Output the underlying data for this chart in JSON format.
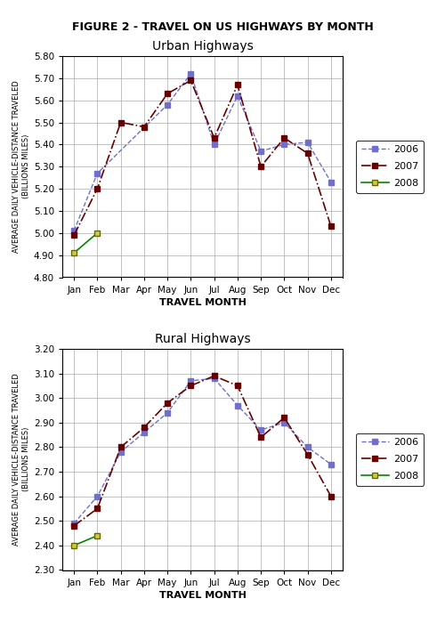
{
  "title": "FIGURE 2 - TRAVEL ON US HIGHWAYS BY MONTH",
  "months": [
    "Jan",
    "Feb",
    "Mar",
    "Apr",
    "May",
    "Jun",
    "Jul",
    "Aug",
    "Sep",
    "Oct",
    "Nov",
    "Dec"
  ],
  "urban": {
    "subtitle": "Urban Highways",
    "ylabel": "AVERAGE DAILY VEHICLE-DISTANCE TRAVELED\n(BILLIONS MILES)",
    "xlabel": "TRAVEL MONTH",
    "ylim": [
      4.8,
      5.8
    ],
    "yticks": [
      4.8,
      4.9,
      5.0,
      5.1,
      5.2,
      5.3,
      5.4,
      5.5,
      5.6,
      5.7,
      5.8
    ],
    "series_2006": [
      5.01,
      5.27,
      null,
      null,
      5.58,
      5.72,
      5.4,
      5.62,
      5.37,
      5.4,
      5.41,
      5.23
    ],
    "series_2007": [
      4.99,
      5.2,
      5.5,
      5.48,
      5.63,
      5.69,
      5.43,
      5.67,
      5.3,
      5.43,
      5.36,
      5.03
    ],
    "series_2008": [
      4.91,
      5.0,
      null,
      null,
      null,
      null,
      null,
      null,
      null,
      null,
      null,
      null
    ]
  },
  "rural": {
    "subtitle": "Rural Highways",
    "ylabel": "AVERAGE DAILY VEHICLE-DISTANCE TRAVELED\n(BILLIONS MILES)",
    "xlabel": "TRAVEL MONTH",
    "ylim": [
      2.3,
      3.2
    ],
    "yticks": [
      2.3,
      2.4,
      2.5,
      2.6,
      2.7,
      2.8,
      2.9,
      3.0,
      3.1,
      3.2
    ],
    "series_2006": [
      2.49,
      2.6,
      2.78,
      2.86,
      2.94,
      3.07,
      3.08,
      2.97,
      2.87,
      2.9,
      2.8,
      2.73
    ],
    "series_2007": [
      2.48,
      2.55,
      2.8,
      2.88,
      2.98,
      3.05,
      3.09,
      3.05,
      2.84,
      2.92,
      2.77,
      2.6
    ],
    "series_2008": [
      2.4,
      2.44,
      null,
      null,
      null,
      null,
      null,
      null,
      null,
      null,
      null,
      null
    ]
  },
  "color_2006": "#7070cc",
  "color_2007": "#660000",
  "color_2008": "#008800",
  "marker_fc_2008": "#cccc44",
  "legend_2006": "2006",
  "legend_2007": "2007",
  "legend_2008": "2008"
}
